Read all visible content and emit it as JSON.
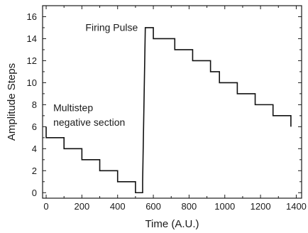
{
  "chart_data": {
    "type": "line",
    "xlabel": "Time (A.U.)",
    "ylabel": "Amplitude Steps",
    "xlim": [
      -20,
      1430
    ],
    "ylim": [
      -0.5,
      17
    ],
    "x_ticks": [
      0,
      200,
      400,
      600,
      800,
      1000,
      1200,
      1400
    ],
    "y_ticks": [
      0,
      2,
      4,
      6,
      8,
      10,
      12,
      14,
      16
    ],
    "grid": false,
    "legend": "none",
    "line_color": "#111111",
    "annotations": [
      {
        "text": "Firing Pulse",
        "x": 220,
        "y": 14.7
      },
      {
        "text": "Multistep",
        "x": 40,
        "y": 7.4
      },
      {
        "text": "negative section",
        "x": 40,
        "y": 6.1
      }
    ],
    "series": [
      {
        "x": [
          0,
          0,
          100,
          100,
          200,
          200,
          300,
          300,
          400,
          400,
          500,
          500,
          540,
          540,
          555,
          555,
          600,
          600,
          720,
          720,
          820,
          820,
          920,
          920,
          970,
          970,
          1070,
          1070,
          1170,
          1170,
          1270,
          1270,
          1370,
          1370
        ],
        "y": [
          6,
          5,
          5,
          4,
          4,
          3,
          3,
          2,
          2,
          1,
          1,
          0,
          0,
          1,
          15,
          15,
          15,
          14,
          14,
          13,
          13,
          12,
          12,
          11,
          11,
          10,
          10,
          9,
          9,
          8,
          8,
          7,
          7,
          6
        ]
      }
    ]
  }
}
